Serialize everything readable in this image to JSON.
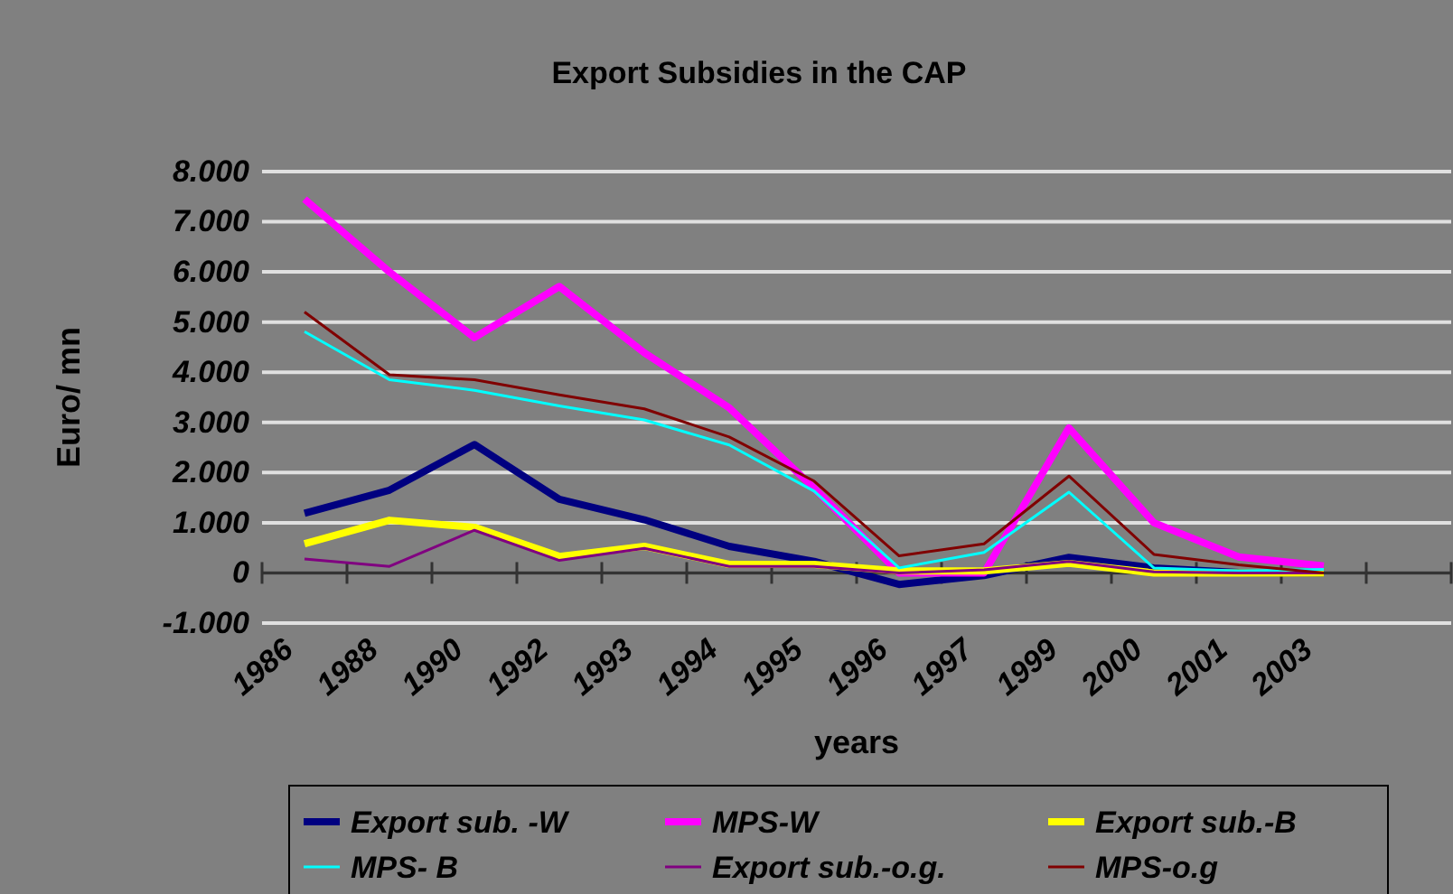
{
  "chart_data": {
    "type": "line",
    "title": "Export Subsidies in the CAP",
    "xlabel": "years",
    "ylabel": "Euro/ mn",
    "categories": [
      "1986",
      "1988",
      "1990",
      "1992",
      "1993",
      "1994",
      "1995",
      "1996",
      "1997",
      "1999",
      "2000",
      "2001",
      "2003",
      null
    ],
    "ylim": [
      -1000,
      8000
    ],
    "yticks": [
      {
        "value": -1000,
        "label": "-1.000"
      },
      0,
      {
        "value": 1000,
        "label": "1.000"
      },
      {
        "value": 2000,
        "label": "2.000"
      },
      {
        "value": 3000,
        "label": "3.000"
      },
      {
        "value": 4000,
        "label": "4.000"
      },
      {
        "value": 5000,
        "label": "5.000"
      },
      {
        "value": 6000,
        "label": "6.000"
      },
      {
        "value": 7000,
        "label": "7.000"
      },
      {
        "value": 8000,
        "label": "8.000"
      }
    ],
    "grid": "y",
    "legend": "bottom",
    "marker": "none",
    "line_style": "solid",
    "series": [
      {
        "name": "Export sub. -W",
        "color": "#000080",
        "values": [
          1190,
          1650,
          2560,
          1470,
          1060,
          530,
          230,
          -230,
          -50,
          310,
          100,
          10,
          0,
          null
        ]
      },
      {
        "name": " MPS-W",
        "color": "#ff00ff",
        "values": [
          7450,
          6000,
          4690,
          5710,
          4390,
          3290,
          1690,
          0,
          0,
          2890,
          1000,
          320,
          140,
          null
        ]
      },
      {
        "name": "Export sub.-B",
        "color": "#ffff00",
        "values": [
          580,
          1050,
          910,
          330,
          530,
          170,
          170,
          40,
          40,
          190,
          0,
          0,
          0,
          null
        ]
      },
      {
        "name": "MPS- B",
        "color": "#00ffff",
        "values": [
          4810,
          3850,
          3640,
          3330,
          3050,
          2550,
          1630,
          100,
          410,
          1610,
          100,
          40,
          70,
          null
        ]
      },
      {
        "name": "Export sub.-o.g.",
        "color": "#800080",
        "values": [
          280,
          130,
          850,
          250,
          490,
          130,
          130,
          0,
          60,
          230,
          20,
          0,
          0,
          null
        ]
      },
      {
        "name": "MPS-o.g",
        "color": "#800000",
        "values": [
          5200,
          3950,
          3850,
          3550,
          3270,
          2710,
          1830,
          340,
          580,
          1930,
          370,
          160,
          0,
          null
        ]
      }
    ]
  }
}
